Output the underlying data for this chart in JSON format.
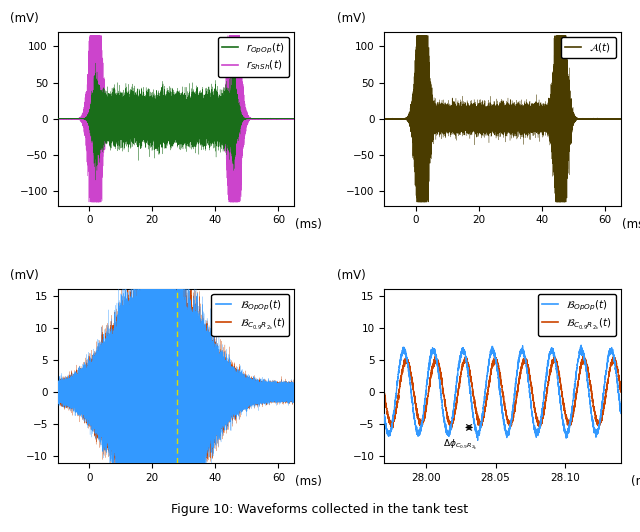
{
  "top_left": {
    "xlim": [
      -10,
      65
    ],
    "ylim": [
      -120,
      120
    ],
    "yticks": [
      -100,
      -50,
      0,
      50,
      100
    ],
    "xticks": [
      0,
      20,
      40,
      60
    ],
    "ylabel": "(mV)",
    "xlabel": "(ms)",
    "color1": "#1a6e1a",
    "color2": "#cc44cc"
  },
  "top_right": {
    "xlim": [
      -10,
      65
    ],
    "ylim": [
      -120,
      120
    ],
    "yticks": [
      -100,
      -50,
      0,
      50,
      100
    ],
    "xticks": [
      0,
      20,
      40,
      60
    ],
    "ylabel": "(mV)",
    "xlabel": "(ms)",
    "color": "#4a3c00"
  },
  "bottom_left": {
    "xlim": [
      -10,
      65
    ],
    "ylim": [
      -11,
      16
    ],
    "yticks": [
      -10,
      -5,
      0,
      5,
      10,
      15
    ],
    "xticks": [
      0,
      20,
      40,
      60
    ],
    "ylabel": "(mV)",
    "xlabel": "(ms)",
    "color1": "#3399ff",
    "color2": "#cc4400",
    "dashed_line_x": 28,
    "dashed_color": "#dddd00"
  },
  "bottom_right": {
    "xlim": [
      27.97,
      28.14
    ],
    "ylim": [
      -11,
      16
    ],
    "yticks": [
      -10,
      -5,
      0,
      5,
      10,
      15
    ],
    "xticks": [
      28,
      28.05,
      28.1
    ],
    "ylabel": "(mV)",
    "xlabel": "(ms)",
    "color1": "#3399ff",
    "color2": "#cc4400"
  },
  "caption": "Figure 10: Waveforms collected in the tank test"
}
